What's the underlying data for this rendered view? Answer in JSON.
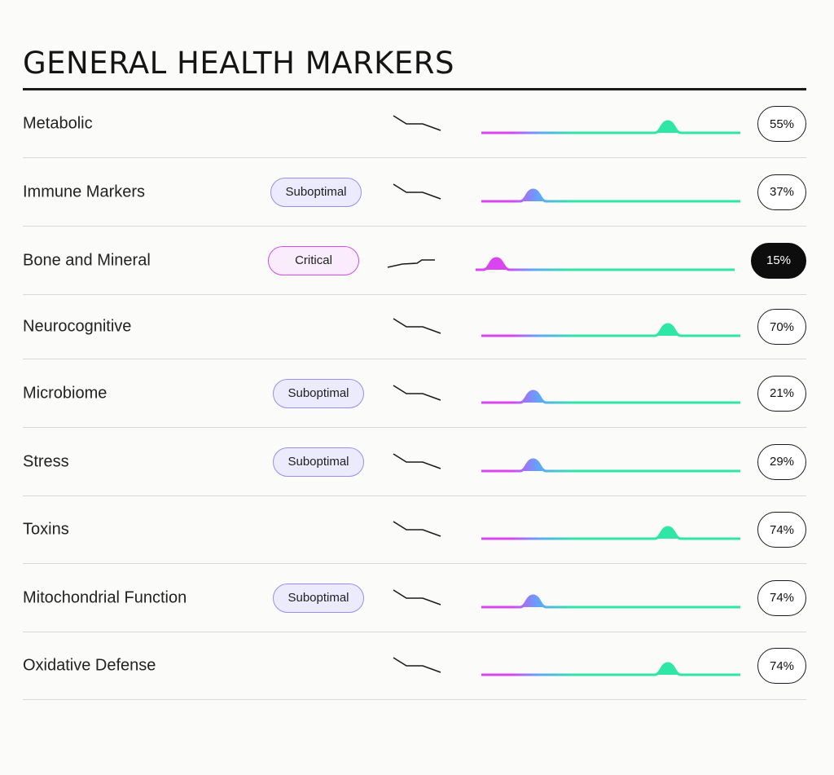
{
  "title": "GENERAL HEALTH MARKERS",
  "colors": {
    "gradient_start": "#d946ef",
    "gradient_mid": "#60a5fa",
    "gradient_end": "#2ee6a6",
    "suboptimal_border": "#9b8cf2",
    "critical_border": "#cf4fe6",
    "critical_pct_bg": "#0d0d0d"
  },
  "markers": [
    {
      "label": "Metabolic",
      "badge": "",
      "status": "normal",
      "trend": "down",
      "value": "55%",
      "level": 0.72
    },
    {
      "label": "Immune Markers",
      "badge": "Suboptimal",
      "status": "suboptimal",
      "trend": "down",
      "value": "37%",
      "level": 0.2
    },
    {
      "label": "Bone and Mineral",
      "badge": "Critical",
      "status": "critical",
      "trend": "up",
      "value": "15%",
      "level": 0.08
    },
    {
      "label": "Neurocognitive",
      "badge": "",
      "status": "normal",
      "trend": "down",
      "value": "70%",
      "level": 0.72
    },
    {
      "label": "Microbiome",
      "badge": "Suboptimal",
      "status": "suboptimal",
      "trend": "down",
      "value": "21%",
      "level": 0.2
    },
    {
      "label": "Stress",
      "badge": "Suboptimal",
      "status": "suboptimal",
      "trend": "down",
      "value": "29%",
      "level": 0.2
    },
    {
      "label": "Toxins",
      "badge": "",
      "status": "normal",
      "trend": "down",
      "value": "74%",
      "level": 0.72
    },
    {
      "label": "Mitochondrial Function",
      "badge": "Suboptimal",
      "status": "suboptimal",
      "trend": "down",
      "value": "74%",
      "level": 0.2
    },
    {
      "label": "Oxidative Defense",
      "badge": "",
      "status": "normal",
      "trend": "down",
      "value": "74%",
      "level": 0.72
    }
  ]
}
